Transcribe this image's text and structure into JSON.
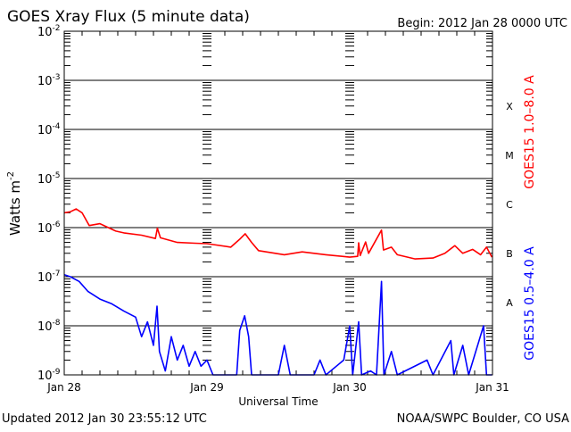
{
  "chart_data": {
    "type": "line",
    "title": "GOES Xray Flux (5 minute data)",
    "subtitle": "Begin:  2012 Jan 28 0000 UTC",
    "xlabel": "Universal Time",
    "ylabel": "Watts m",
    "ylabel_sup": "-2",
    "y_scale": "log",
    "ylim": [
      1e-09,
      0.01
    ],
    "xlim": [
      "2012-01-28T00:00",
      "2012-01-31T00:00"
    ],
    "grid": "horizontal at each decade from 1e-8 to 1e-3",
    "x_ticks": [
      {
        "t": "2012-01-28T00:00",
        "label": "Jan 28"
      },
      {
        "t": "2012-01-29T00:00",
        "label": "Jan 29"
      },
      {
        "t": "2012-01-30T00:00",
        "label": "Jan 30"
      },
      {
        "t": "2012-01-31T00:00",
        "label": "Jan 31"
      }
    ],
    "y_ticks": [
      {
        "v": 0.01,
        "base": "10",
        "exp": "-2"
      },
      {
        "v": 0.001,
        "base": "10",
        "exp": "-3"
      },
      {
        "v": 0.0001,
        "base": "10",
        "exp": "-4"
      },
      {
        "v": 1e-05,
        "base": "10",
        "exp": "-5"
      },
      {
        "v": 1e-06,
        "base": "10",
        "exp": "-6"
      },
      {
        "v": 1e-07,
        "base": "10",
        "exp": "-7"
      },
      {
        "v": 1e-08,
        "base": "10",
        "exp": "-8"
      },
      {
        "v": 1e-09,
        "base": "10",
        "exp": "-9"
      }
    ],
    "flare_classes": [
      {
        "label": "X",
        "v": 0.0003
      },
      {
        "label": "M",
        "v": 3e-05
      },
      {
        "label": "C",
        "v": 3e-06
      },
      {
        "label": "B",
        "v": 3e-07
      },
      {
        "label": "A",
        "v": 3e-08
      }
    ],
    "series": [
      {
        "name": "GOES15 1.0–8.0 A",
        "color": "#ff0000",
        "points": [
          [
            "2012-01-28T00:00",
            2e-06
          ],
          [
            "2012-01-28T01:00",
            2.1e-06
          ],
          [
            "2012-01-28T02:00",
            2.4e-06
          ],
          [
            "2012-01-28T03:00",
            2e-06
          ],
          [
            "2012-01-28T04:12",
            1.1e-06
          ],
          [
            "2012-01-28T06:00",
            1.2e-06
          ],
          [
            "2012-01-28T08:40",
            8.5e-07
          ],
          [
            "2012-01-28T10:00",
            7.8e-07
          ],
          [
            "2012-01-28T13:00",
            7e-07
          ],
          [
            "2012-01-28T15:20",
            6e-07
          ],
          [
            "2012-01-28T15:40",
            9.7e-07
          ],
          [
            "2012-01-28T16:10",
            6.2e-07
          ],
          [
            "2012-01-28T19:00",
            5e-07
          ],
          [
            "2012-01-28T22:00",
            4.8e-07
          ],
          [
            "2012-01-29T00:00",
            4.7e-07
          ],
          [
            "2012-01-29T04:00",
            4e-07
          ],
          [
            "2012-01-29T05:30",
            5.8e-07
          ],
          [
            "2012-01-29T06:25",
            7.5e-07
          ],
          [
            "2012-01-29T07:30",
            5e-07
          ],
          [
            "2012-01-29T08:40",
            3.4e-07
          ],
          [
            "2012-01-29T13:00",
            2.8e-07
          ],
          [
            "2012-01-29T16:00",
            3.2e-07
          ],
          [
            "2012-01-29T20:00",
            2.8e-07
          ],
          [
            "2012-01-30T00:00",
            2.5e-07
          ],
          [
            "2012-01-30T01:20",
            2.6e-07
          ],
          [
            "2012-01-30T01:30",
            4.9e-07
          ],
          [
            "2012-01-30T01:45",
            2.7e-07
          ],
          [
            "2012-01-30T02:40",
            5.1e-07
          ],
          [
            "2012-01-30T03:10",
            3e-07
          ],
          [
            "2012-01-30T05:20",
            8.9e-07
          ],
          [
            "2012-01-30T05:40",
            3.5e-07
          ],
          [
            "2012-01-30T07:00",
            4e-07
          ],
          [
            "2012-01-30T08:00",
            2.8e-07
          ],
          [
            "2012-01-30T11:00",
            2.3e-07
          ],
          [
            "2012-01-30T14:00",
            2.4e-07
          ],
          [
            "2012-01-30T16:00",
            3e-07
          ],
          [
            "2012-01-30T17:40",
            4.3e-07
          ],
          [
            "2012-01-30T19:00",
            3e-07
          ],
          [
            "2012-01-30T20:40",
            3.6e-07
          ],
          [
            "2012-01-30T22:00",
            2.8e-07
          ],
          [
            "2012-01-30T23:00",
            4e-07
          ],
          [
            "2012-01-30T23:55",
            2.5e-07
          ]
        ]
      },
      {
        "name": "GOES15 0.5–4.0 A",
        "color": "#0000ff",
        "points": [
          [
            "2012-01-28T00:00",
            1.1e-07
          ],
          [
            "2012-01-28T01:00",
            1e-07
          ],
          [
            "2012-01-28T02:30",
            8e-08
          ],
          [
            "2012-01-28T04:00",
            5e-08
          ],
          [
            "2012-01-28T06:00",
            3.5e-08
          ],
          [
            "2012-01-28T08:00",
            2.8e-08
          ],
          [
            "2012-01-28T10:00",
            2e-08
          ],
          [
            "2012-01-28T12:00",
            1.5e-08
          ],
          [
            "2012-01-28T13:00",
            6e-09
          ],
          [
            "2012-01-28T14:00",
            1.2e-08
          ],
          [
            "2012-01-28T15:00",
            4e-09
          ],
          [
            "2012-01-28T15:36",
            2.5e-08
          ],
          [
            "2012-01-28T16:00",
            3e-09
          ],
          [
            "2012-01-28T17:00",
            1.2e-09
          ],
          [
            "2012-01-28T18:00",
            6e-09
          ],
          [
            "2012-01-28T19:00",
            2e-09
          ],
          [
            "2012-01-28T20:00",
            4e-09
          ],
          [
            "2012-01-28T21:00",
            1.5e-09
          ],
          [
            "2012-01-28T22:00",
            3e-09
          ],
          [
            "2012-01-28T23:00",
            1.5e-09
          ],
          [
            "2012-01-29T00:00",
            2e-09
          ],
          [
            "2012-01-29T01:00",
            1e-09
          ],
          [
            "2012-01-29T05:00",
            1e-09
          ],
          [
            "2012-01-29T05:30",
            8e-09
          ],
          [
            "2012-01-29T06:20",
            1.6e-08
          ],
          [
            "2012-01-29T07:00",
            6e-09
          ],
          [
            "2012-01-29T07:30",
            1e-09
          ],
          [
            "2012-01-29T12:00",
            1e-09
          ],
          [
            "2012-01-29T13:00",
            4e-09
          ],
          [
            "2012-01-29T14:00",
            1e-09
          ],
          [
            "2012-01-29T18:00",
            1e-09
          ],
          [
            "2012-01-29T19:00",
            2e-09
          ],
          [
            "2012-01-29T20:00",
            1e-09
          ],
          [
            "2012-01-29T23:00",
            2e-09
          ],
          [
            "2012-01-30T00:00",
            1e-08
          ],
          [
            "2012-01-30T00:30",
            1e-09
          ],
          [
            "2012-01-30T01:30",
            1.2e-08
          ],
          [
            "2012-01-30T02:00",
            1e-09
          ],
          [
            "2012-01-30T03:30",
            1.2e-09
          ],
          [
            "2012-01-30T04:30",
            1e-09
          ],
          [
            "2012-01-30T05:20",
            8e-08
          ],
          [
            "2012-01-30T05:45",
            1e-09
          ],
          [
            "2012-01-30T07:00",
            3e-09
          ],
          [
            "2012-01-30T08:00",
            1e-09
          ],
          [
            "2012-01-30T13:00",
            2e-09
          ],
          [
            "2012-01-30T14:00",
            1e-09
          ],
          [
            "2012-01-30T17:00",
            5e-09
          ],
          [
            "2012-01-30T17:30",
            1e-09
          ],
          [
            "2012-01-30T19:00",
            4e-09
          ],
          [
            "2012-01-30T20:00",
            1e-09
          ],
          [
            "2012-01-30T22:30",
            1e-08
          ],
          [
            "2012-01-30T23:00",
            1e-09
          ],
          [
            "2012-01-30T23:55",
            1e-09
          ]
        ]
      }
    ]
  },
  "footer": {
    "updated": "Updated 2012 Jan 30 23:55:12 UTC",
    "credit": "NOAA/SWPC Boulder, CO USA"
  }
}
